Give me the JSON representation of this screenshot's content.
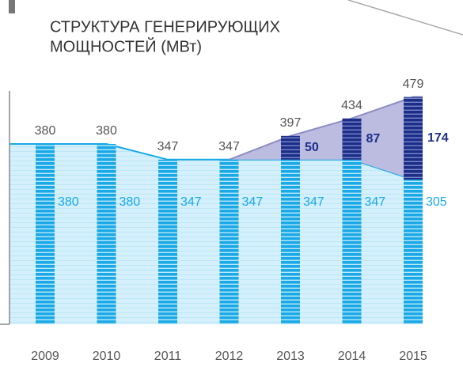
{
  "chart_data": {
    "type": "stacked-bar-area",
    "title": [
      "СТРУКТУРА ГЕНЕРИРУЮЩИХ",
      "МОЩНОСТЕЙ (МВт)"
    ],
    "categories": [
      "2009",
      "2010",
      "2011",
      "2012",
      "2013",
      "2014",
      "2015"
    ],
    "series": [
      {
        "name": null,
        "color": "#19a9e6",
        "values": [
          380,
          380,
          347,
          347,
          347,
          347,
          305
        ]
      },
      {
        "name": null,
        "color": "#1c2e8a",
        "values": [
          null,
          null,
          null,
          null,
          50,
          87,
          174
        ]
      }
    ],
    "totals": [
      380,
      380,
      347,
      347,
      397,
      434,
      479
    ],
    "ylim": [
      0,
      500
    ]
  }
}
